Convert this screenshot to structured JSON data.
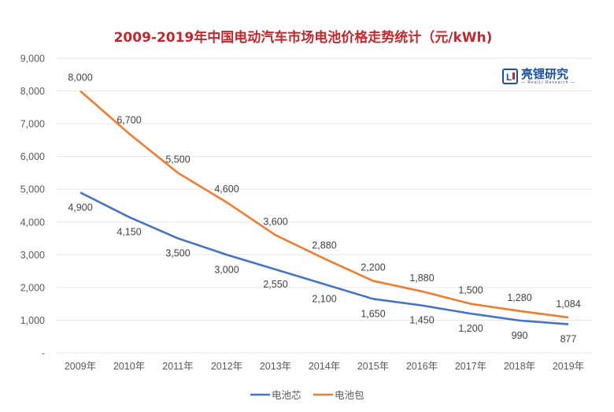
{
  "chart_data": {
    "type": "line",
    "title": "2009-2019年中国电动汽车市场电池价格走势统计（元/kWh)",
    "xlabel": "",
    "ylabel": "",
    "categories": [
      "2009年",
      "2010年",
      "2011年",
      "2012年",
      "2013年",
      "2014年",
      "2015年",
      "2016年",
      "2017年",
      "2018年",
      "2019年"
    ],
    "ylim": [
      0,
      9000
    ],
    "yticks": [
      0,
      1000,
      2000,
      3000,
      4000,
      5000,
      6000,
      7000,
      8000,
      9000
    ],
    "ytick_labels": [
      "-",
      "1,000",
      "2,000",
      "3,000",
      "4,000",
      "5,000",
      "6,000",
      "7,000",
      "8,000",
      "9,000"
    ],
    "grid": true,
    "legend_position": "bottom",
    "series": [
      {
        "name": "电池芯",
        "color": "#4472c4",
        "values": [
          4900,
          4150,
          3500,
          3000,
          2550,
          2100,
          1650,
          1450,
          1200,
          990,
          877
        ],
        "labels": [
          "4,900",
          "4,150",
          "3,500",
          "3,000",
          "2,550",
          "2,100",
          "1,650",
          "1,450",
          "1,200",
          "990",
          "877"
        ],
        "label_position": "below"
      },
      {
        "name": "电池包",
        "color": "#ed7d31",
        "values": [
          8000,
          6700,
          5500,
          4600,
          3600,
          2880,
          2200,
          1880,
          1500,
          1280,
          1084
        ],
        "labels": [
          "8,000",
          "6,700",
          "5,500",
          "4,600",
          "3,600",
          "2,880",
          "2,200",
          "1,880",
          "1,500",
          "1,280",
          "1,084"
        ],
        "label_position": "above"
      }
    ]
  },
  "logo": {
    "mark": "L",
    "name": "亮锂研究",
    "subtitle": "— RealLi Research —",
    "color": "#1d4e9a"
  }
}
